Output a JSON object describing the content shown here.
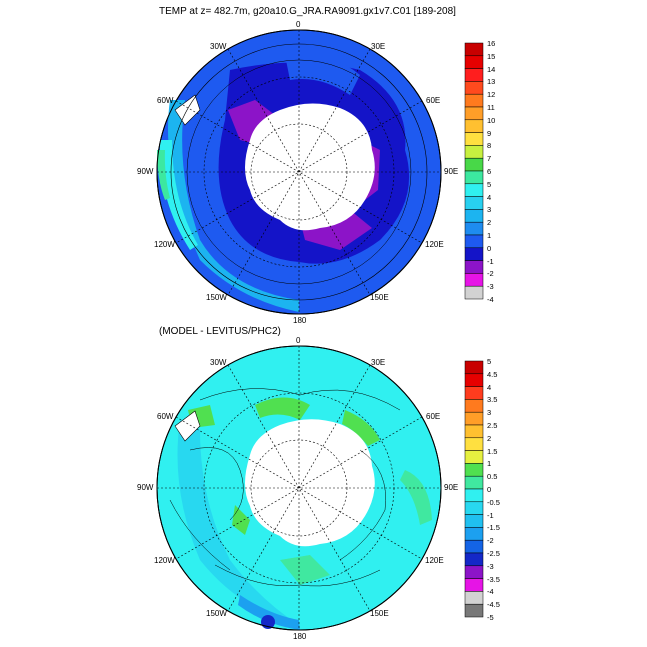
{
  "panel1": {
    "title": "TEMP at z= 482.7m, g20a10.G_JRA.RA9091.gx1v7.C01 [189-208]",
    "lon_labels": {
      "top": "0",
      "tr": "30E",
      "r1": "60E",
      "r": "90E",
      "r2": "120E",
      "br": "150E",
      "bottom": "180",
      "bl": "150W",
      "l2": "120W",
      "l": "90W",
      "l1": "60W",
      "tl": "30W"
    },
    "colorbar": {
      "labels": [
        "16",
        "15",
        "14",
        "13",
        "12",
        "11",
        "10",
        "9",
        "8",
        "7",
        "6",
        "5",
        "4",
        "3",
        "2",
        "1",
        "0",
        "-1",
        "-2",
        "-3",
        "-4"
      ],
      "colors": [
        "#c80000",
        "#e60000",
        "#ff1e1e",
        "#ff4a1e",
        "#ff7a1e",
        "#ff9e28",
        "#ffc030",
        "#ffe040",
        "#c8f040",
        "#48d848",
        "#3ce8a0",
        "#30f0f0",
        "#28d0f0",
        "#1cb4f0",
        "#1e8cf0",
        "#1e5af0",
        "#1414c8",
        "#8c14c8",
        "#e614e6",
        "#d2d2d2"
      ]
    }
  },
  "panel2": {
    "title": "(MODEL - LEVITUS/PHC2)",
    "lon_labels": {
      "top": "0",
      "tr": "30E",
      "r1": "60E",
      "r": "90E",
      "r2": "120E",
      "br": "150E",
      "bottom": "180",
      "bl": "150W",
      "l2": "120W",
      "l": "90W",
      "l1": "60W",
      "tl": "30W"
    },
    "colorbar": {
      "labels": [
        "5",
        "4.5",
        "4",
        "3.5",
        "3",
        "2.5",
        "2",
        "1.5",
        "1",
        "0.5",
        "0",
        "-0.5",
        "-1",
        "-1.5",
        "-2",
        "-2.5",
        "-3",
        "-3.5",
        "-4",
        "-4.5",
        "-5"
      ],
      "colors": [
        "#c80000",
        "#e60000",
        "#ff3c1e",
        "#ff7a1e",
        "#ff9e28",
        "#ffc030",
        "#ffe040",
        "#e6f040",
        "#50e050",
        "#40e8a0",
        "#30f0f0",
        "#28d8f0",
        "#20c0f0",
        "#1ca0f0",
        "#1464e6",
        "#1428c8",
        "#8c14c8",
        "#e614e6",
        "#d2d2d2",
        "#787878"
      ]
    }
  }
}
